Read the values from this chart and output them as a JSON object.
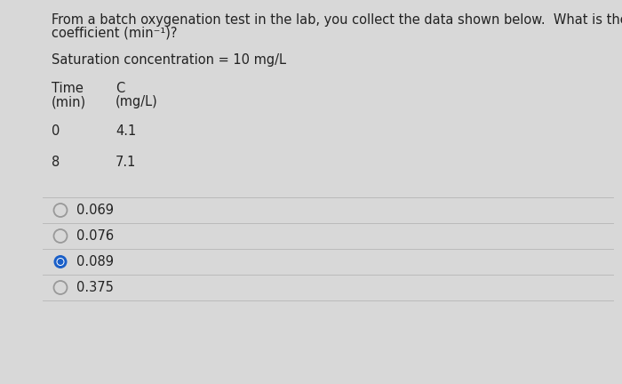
{
  "background_color": "#d8d8d8",
  "content_bg": "#dcdcdc",
  "title_line1": "From a batch oxygenation test in the lab, you collect the data shown below.  What is the rate",
  "title_line2": "coefficient (min⁻¹)?",
  "saturation_text": "Saturation concentration = 10 mg/L",
  "col1_header": "Time",
  "col1_subheader": "(min)",
  "col2_header": "C",
  "col2_subheader": "(mg/L)",
  "table_data": [
    [
      "0",
      "4.1"
    ],
    [
      "8",
      "7.1"
    ]
  ],
  "options": [
    "0.069",
    "0.076",
    "0.089",
    "0.375"
  ],
  "correct_option_index": 2,
  "text_color": "#222222",
  "radio_empty_color": "#999999",
  "radio_filled_color": "#1a5fc8",
  "divider_color": "#bbbbbb",
  "font_size": 10.5
}
